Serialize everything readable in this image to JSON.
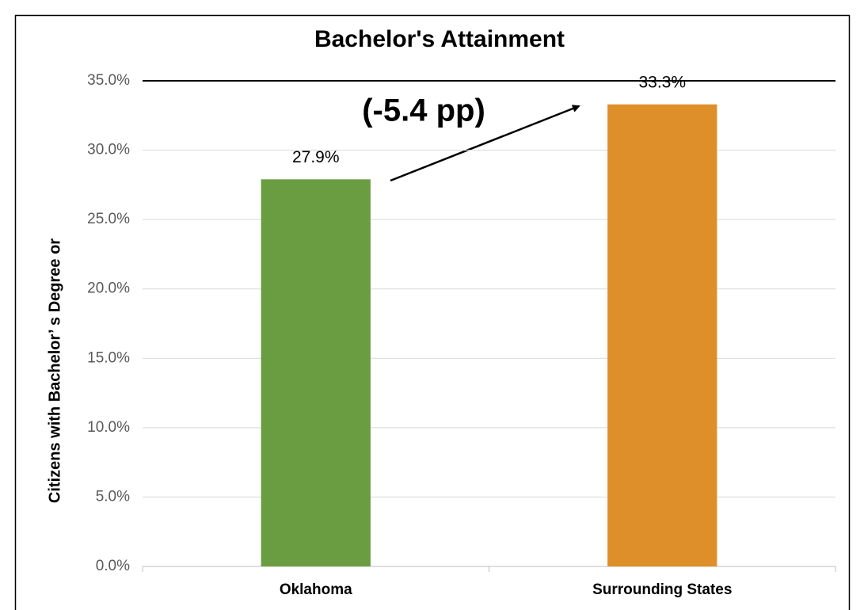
{
  "chart_data": {
    "type": "bar",
    "title": "Bachelor's Attainment",
    "y_label": "Citizens with Bachelor’ s Degree or",
    "annotation": "(-5.4 pp)",
    "categories": [
      "Oklahoma",
      "Surrounding States"
    ],
    "values": [
      27.9,
      33.3
    ],
    "value_labels": [
      "27.9%",
      "33.3%"
    ],
    "colors": [
      "#6a9d41",
      "#de8f29"
    ],
    "ylim": [
      0,
      35
    ],
    "yticks": [
      {
        "value": 0,
        "label": "0.0%"
      },
      {
        "value": 5,
        "label": "5.0%"
      },
      {
        "value": 10,
        "label": "10.0%"
      },
      {
        "value": 15,
        "label": "15.0%"
      },
      {
        "value": 20,
        "label": "20.0%"
      },
      {
        "value": 25,
        "label": "25.0%"
      },
      {
        "value": 30,
        "label": "30.0%"
      },
      {
        "value": 35,
        "label": "35.0%"
      }
    ],
    "grid": true
  }
}
